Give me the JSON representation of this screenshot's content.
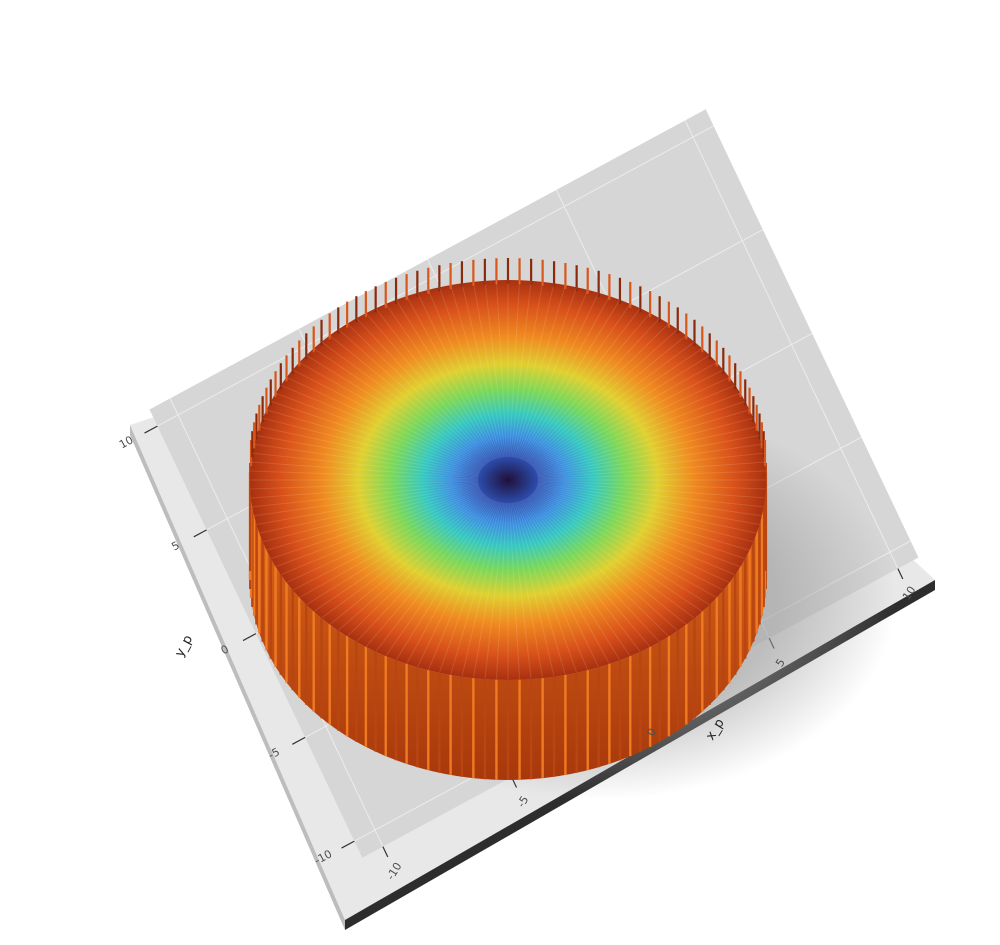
{
  "chart_data": {
    "type": "surface3d",
    "xlabel": "x_p",
    "ylabel": "y_p",
    "xlim": [
      -10,
      10
    ],
    "ylim": [
      -10,
      10
    ],
    "xticks": [
      -10,
      -5,
      0,
      5,
      10
    ],
    "yticks": [
      -10,
      -5,
      0,
      5,
      10
    ],
    "grid": true
  }
}
